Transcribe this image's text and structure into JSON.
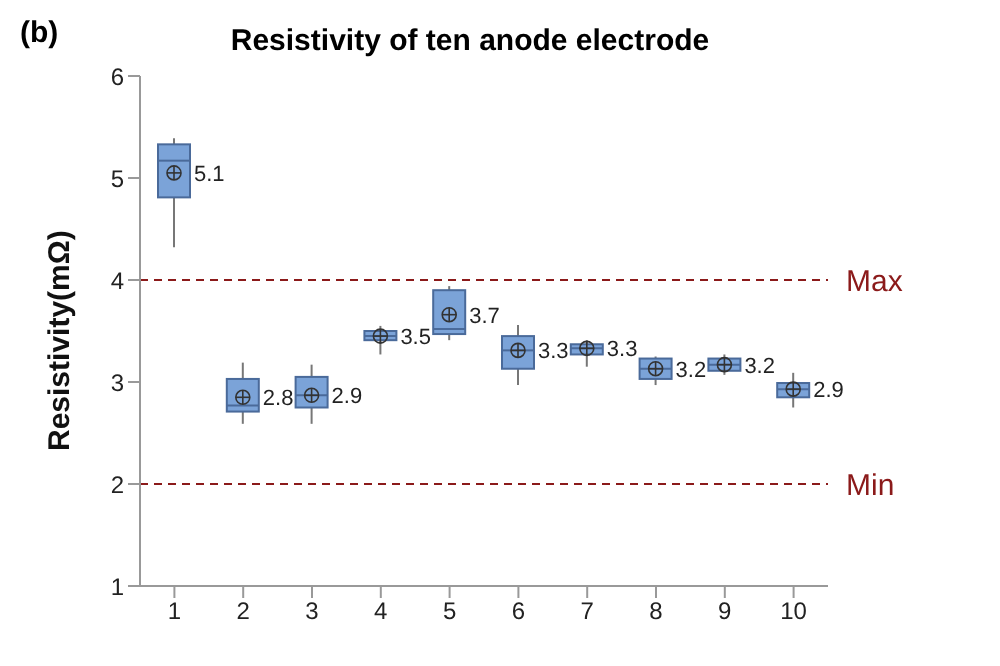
{
  "chart_data": {
    "type": "box",
    "title": "Resistivity of ten anode electrode",
    "ylabel": "Resistivity(mΩ)",
    "annotations": [
      "(b)"
    ],
    "categories": [
      "1",
      "2",
      "3",
      "4",
      "5",
      "6",
      "7",
      "8",
      "9",
      "10"
    ],
    "color": "#7ba3d8",
    "boxes": [
      {
        "low": 4.32,
        "q1": 4.81,
        "median": 5.17,
        "q3": 5.33,
        "high": 5.39,
        "mean": 5.05
      },
      {
        "low": 2.59,
        "q1": 2.71,
        "median": 2.77,
        "q3": 3.03,
        "high": 3.19,
        "mean": 2.85
      },
      {
        "low": 2.59,
        "q1": 2.75,
        "median": 2.87,
        "q3": 3.05,
        "high": 3.17,
        "mean": 2.87
      },
      {
        "low": 3.27,
        "q1": 3.41,
        "median": 3.45,
        "q3": 3.5,
        "high": 3.55,
        "mean": 3.45
      },
      {
        "low": 3.41,
        "q1": 3.47,
        "median": 3.52,
        "q3": 3.9,
        "high": 3.94,
        "mean": 3.66
      },
      {
        "low": 2.97,
        "q1": 3.13,
        "median": 3.31,
        "q3": 3.45,
        "high": 3.56,
        "mean": 3.31
      },
      {
        "low": 3.15,
        "q1": 3.27,
        "median": 3.33,
        "q3": 3.37,
        "high": 3.41,
        "mean": 3.33
      },
      {
        "low": 2.97,
        "q1": 3.03,
        "median": 3.13,
        "q3": 3.23,
        "high": 3.25,
        "mean": 3.13
      },
      {
        "low": 3.07,
        "q1": 3.11,
        "median": 3.17,
        "q3": 3.23,
        "high": 3.27,
        "mean": 3.17
      },
      {
        "low": 2.75,
        "q1": 2.85,
        "median": 2.93,
        "q3": 2.99,
        "high": 3.09,
        "mean": 2.93
      }
    ],
    "value_labels": [
      "5.1",
      "2.8",
      "2.9",
      "3.5",
      "3.7",
      "3.3",
      "3.3",
      "3.2",
      "3.2",
      "2.9"
    ],
    "ylim": [
      1,
      6
    ],
    "yticks": [
      1,
      2,
      3,
      4,
      5,
      6
    ],
    "ref_lines": [
      {
        "axis": "y",
        "value": 4,
        "label": "Max",
        "color": "#8b1a1a",
        "line_style": "dashed"
      },
      {
        "axis": "y",
        "value": 2,
        "label": "Min",
        "color": "#8b1a1a",
        "line_style": "dashed"
      }
    ],
    "grid": false
  }
}
